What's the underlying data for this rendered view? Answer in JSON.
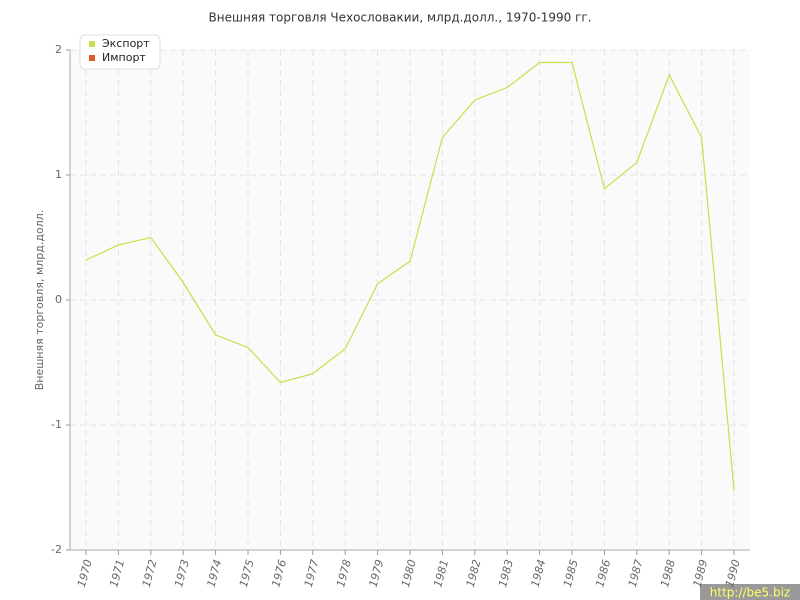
{
  "chart_data": {
    "type": "line",
    "title": "Внешняя торговля Чехословакии, млрд.долл., 1970-1990 гг.",
    "y_label": "Внешняя торговля, млрд.долл.",
    "categories": [
      "1970",
      "1971",
      "1972",
      "1973",
      "1974",
      "1975",
      "1976",
      "1977",
      "1978",
      "1979",
      "1980",
      "1981",
      "1982",
      "1983",
      "1984",
      "1985",
      "1986",
      "1987",
      "1988",
      "1989",
      "1990"
    ],
    "series": [
      {
        "name": "Экспорт",
        "color": "#c5e04a",
        "values": [
          0.32,
          0.44,
          0.5,
          0.14,
          -0.28,
          -0.38,
          -0.66,
          -0.59,
          -0.39,
          0.13,
          0.31,
          1.3,
          1.6,
          1.7,
          1.9,
          1.9,
          0.89,
          1.1,
          1.8,
          1.3,
          -1.52
        ]
      },
      {
        "name": "Импорт",
        "color": "#e05a2b",
        "values": [
          null,
          null,
          null,
          null,
          null,
          null,
          null,
          null,
          null,
          null,
          null,
          null,
          null,
          null,
          null,
          null,
          null,
          null,
          null,
          null,
          null
        ]
      }
    ],
    "ylim": [
      -2,
      2
    ],
    "yticks": [
      -2,
      -1,
      0,
      1,
      2
    ],
    "grid": true,
    "legend": "top-left",
    "watermark": "http://be5.biz"
  }
}
